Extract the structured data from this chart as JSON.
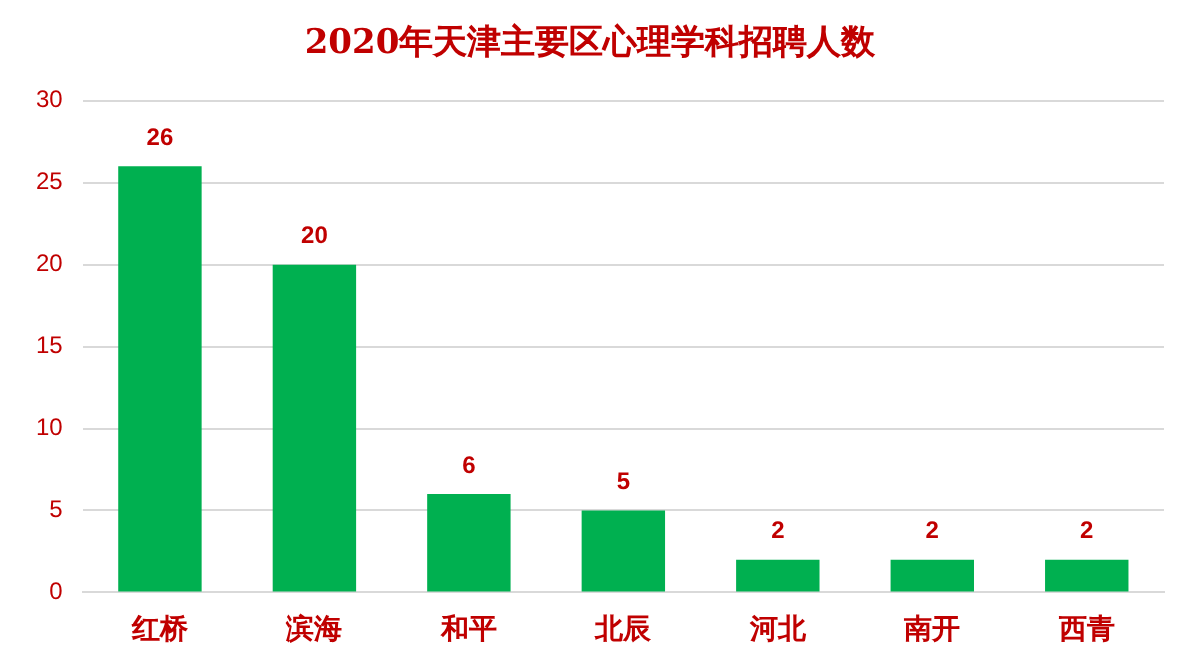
{
  "chart_data": {
    "type": "bar",
    "title": "2020年天津主要区心理学科招聘人数",
    "categories": [
      "红桥",
      "滨海",
      "和平",
      "北辰",
      "河北",
      "南开",
      "西青"
    ],
    "values": [
      26,
      20,
      6,
      5,
      2,
      2,
      2
    ],
    "color": "#00b050",
    "ylim": [
      0,
      30
    ],
    "yticks": [
      0,
      5,
      10,
      15,
      20,
      25,
      30
    ],
    "grid": "y",
    "data_labels": true
  }
}
